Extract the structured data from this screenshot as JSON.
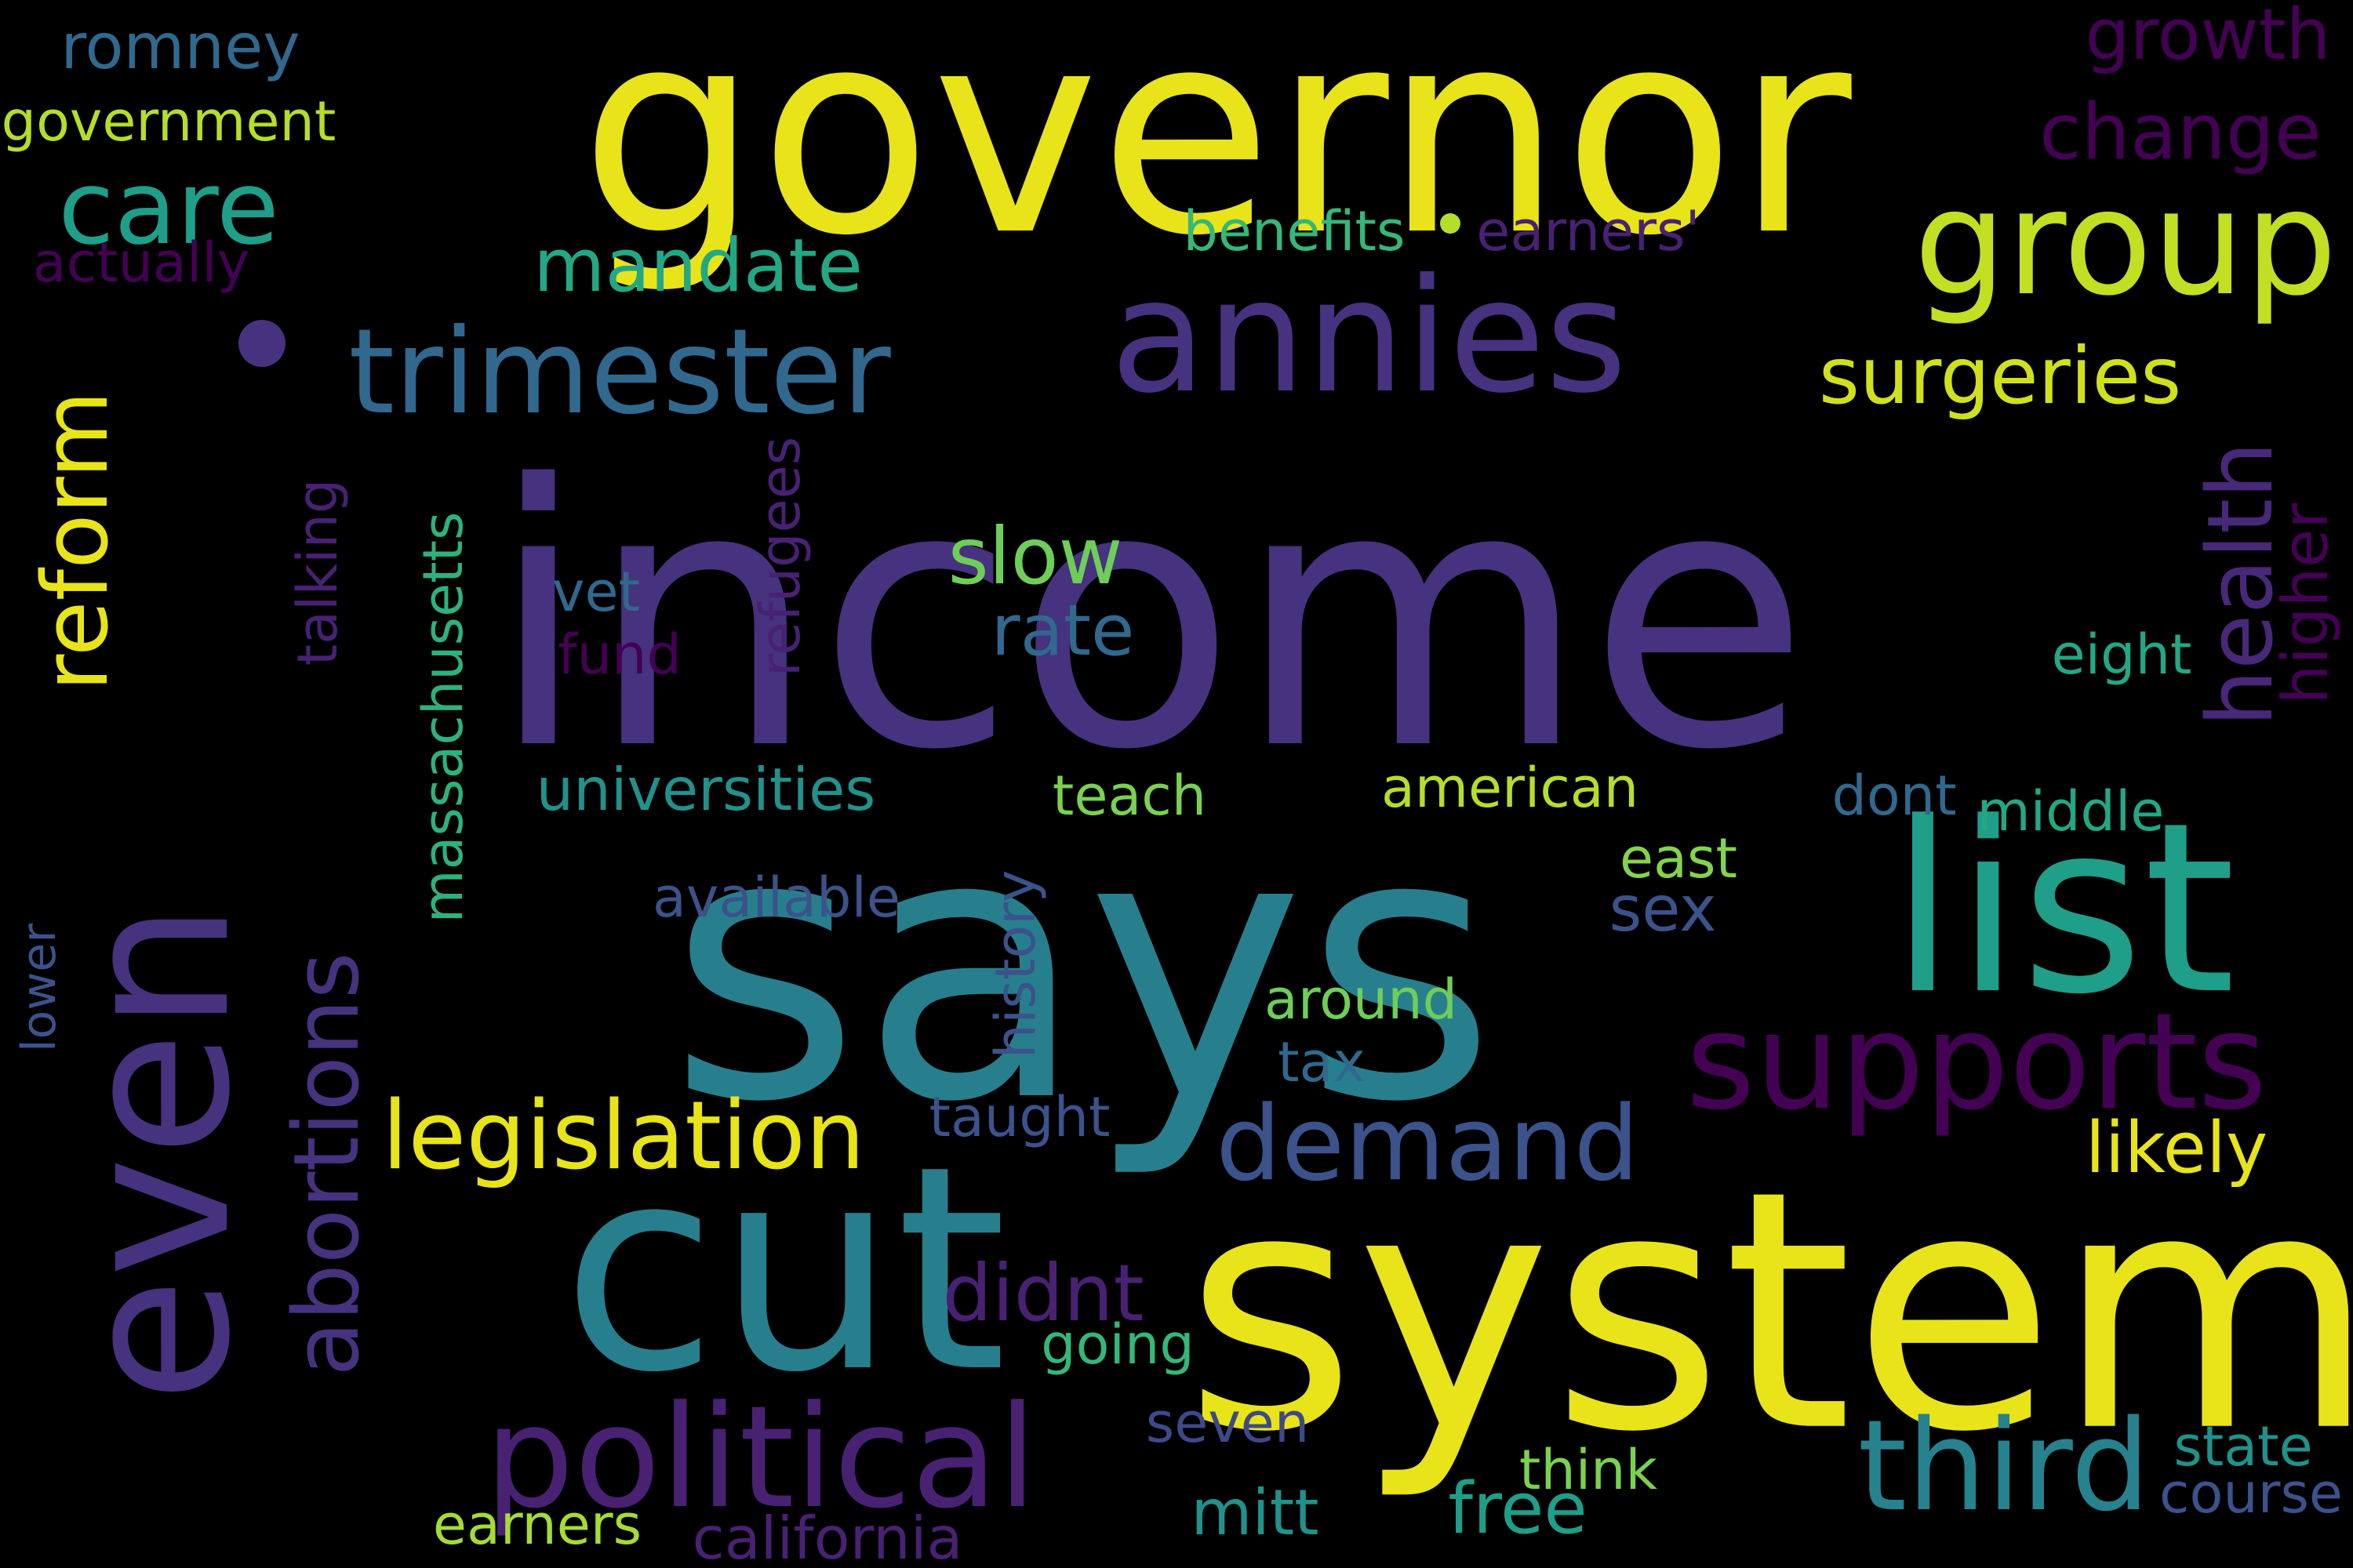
{
  "words": [
    {
      "text": "income",
      "color": "#46327e"
    },
    {
      "text": "says",
      "color": "#277f8e"
    },
    {
      "text": "governor",
      "color": "#e8e419"
    },
    {
      "text": "even",
      "color": "#46327e"
    },
    {
      "text": "cut",
      "color": "#277f8e"
    },
    {
      "text": "system",
      "color": "#e8e419"
    },
    {
      "text": "annies",
      "color": "#46327e"
    },
    {
      "text": "list",
      "color": "#1f9e89"
    },
    {
      "text": "group",
      "color": "#c2df23"
    },
    {
      "text": "political",
      "color": "#482173"
    },
    {
      "text": "supports",
      "color": "#440154"
    },
    {
      "text": "third",
      "color": "#26828e"
    },
    {
      "text": "trimester",
      "color": "#31688e"
    },
    {
      "text": "care",
      "color": "#1f9e89"
    },
    {
      "text": "demand",
      "color": "#3b528b"
    },
    {
      "text": "reform",
      "color": "#e8e419"
    },
    {
      "text": "abortions",
      "color": "#46327e"
    },
    {
      "text": "health",
      "color": "#482878"
    },
    {
      "text": "legislation",
      "color": "#e8e419"
    },
    {
      "text": "mandate",
      "color": "#22a884"
    },
    {
      "text": "massachusetts",
      "color": "#2db27d"
    },
    {
      "text": "surgeries",
      "color": "#d0e11c"
    },
    {
      "text": "romney",
      "color": "#31688e"
    },
    {
      "text": "growth",
      "color": "#440154"
    },
    {
      "text": "change",
      "color": "#440154"
    },
    {
      "text": "government",
      "color": "#b5de2b"
    },
    {
      "text": "actually",
      "color": "#440154"
    },
    {
      "text": "benefits",
      "color": "#35b779"
    },
    {
      "text": "earners'",
      "color": "#482173"
    },
    {
      "text": "slow",
      "color": "#6ece58"
    },
    {
      "text": "rate",
      "color": "#31688e"
    },
    {
      "text": "vet",
      "color": "#31688e"
    },
    {
      "text": "fund",
      "color": "#440154"
    },
    {
      "text": "talking",
      "color": "#482173"
    },
    {
      "text": "refugees",
      "color": "#482173"
    },
    {
      "text": "eight",
      "color": "#22a884"
    },
    {
      "text": "higher",
      "color": "#440154"
    },
    {
      "text": "universities",
      "color": "#21918c"
    },
    {
      "text": "teach",
      "color": "#7ad151"
    },
    {
      "text": "american",
      "color": "#b5de2b"
    },
    {
      "text": "dont",
      "color": "#31688e"
    },
    {
      "text": "middle",
      "color": "#22a884"
    },
    {
      "text": "east",
      "color": "#84d44b"
    },
    {
      "text": "sex",
      "color": "#3b528b"
    },
    {
      "text": "available",
      "color": "#3b528b"
    },
    {
      "text": "history",
      "color": "#3b528b"
    },
    {
      "text": "lower",
      "color": "#3b528b"
    },
    {
      "text": "around",
      "color": "#6ece58"
    },
    {
      "text": "tax",
      "color": "#31688e"
    },
    {
      "text": "taught",
      "color": "#3b528b"
    },
    {
      "text": "likely",
      "color": "#e8e419"
    },
    {
      "text": "didnt",
      "color": "#482173"
    },
    {
      "text": "going",
      "color": "#35b779"
    },
    {
      "text": "seven",
      "color": "#3e4989"
    },
    {
      "text": "think",
      "color": "#7ad151"
    },
    {
      "text": "state",
      "color": "#21918c"
    },
    {
      "text": "course",
      "color": "#3b528b"
    },
    {
      "text": "mitt",
      "color": "#21918c"
    },
    {
      "text": "free",
      "color": "#1f9e89"
    },
    {
      "text": "earners",
      "color": "#a5db36"
    },
    {
      "text": "california",
      "color": "#482173"
    }
  ]
}
